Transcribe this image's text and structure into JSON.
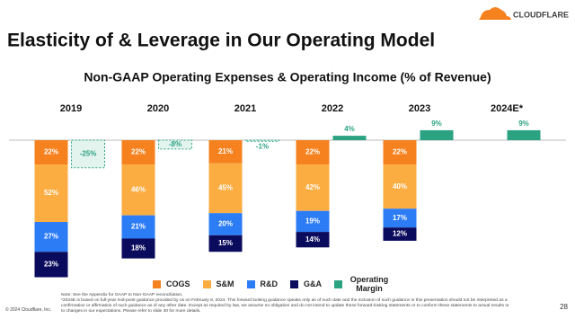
{
  "slide": {
    "title": "Elasticity of & Leverage in Our Operating Model",
    "logo": "CLOUDFLARE",
    "notes": [
      "Note: See the Appendix for GAAP to Non-GAAP reconciliation.",
      "*2024E is based on full-year mid-point guidance provided by us on February 8, 2024. This forward looking guidance speaks only as of such date and the inclusion of such guidance in this presentation should not be interpreted as a confirmation or affirmation of such guidance as of any other date. Except as required by law, we assume no obligation and do not intend to update these forward-looking statements or to conform these statements to actual results or to changes in our expectations. Please refer to slide 30 for more details."
    ],
    "copyright": "© 2024 Cloudflare, Inc.",
    "page_number": "28"
  },
  "chart_data": {
    "type": "bar",
    "stacked": true,
    "title": "Non-GAAP Operating Expenses & Operating Income (% of Revenue)",
    "categories": [
      "2019",
      "2020",
      "2021",
      "2022",
      "2023",
      "2024E*"
    ],
    "series": [
      {
        "name": "COGS",
        "color": "#f6821f",
        "values": [
          22,
          22,
          21,
          22,
          22,
          null
        ],
        "value_labels": [
          "22%",
          "22%",
          "21%",
          "22%",
          "22%",
          null
        ]
      },
      {
        "name": "S&M",
        "color": "#fbad41",
        "values": [
          52,
          46,
          45,
          42,
          40,
          null
        ],
        "value_labels": [
          "52%",
          "46%",
          "45%",
          "42%",
          "40%",
          null
        ]
      },
      {
        "name": "R&D",
        "color": "#2c7cf6",
        "values": [
          27,
          21,
          20,
          19,
          17,
          null
        ],
        "value_labels": [
          "27%",
          "21%",
          "20%",
          "19%",
          "17%",
          null
        ]
      },
      {
        "name": "G&A",
        "color": "#0b0b5e",
        "values": [
          23,
          18,
          15,
          14,
          12,
          null
        ],
        "value_labels": [
          "23%",
          "18%",
          "15%",
          "14%",
          "12%",
          null
        ]
      },
      {
        "name": "Operating Margin",
        "color": "#2ba383",
        "values": [
          -25,
          -8,
          -1,
          4,
          9,
          9
        ],
        "value_labels": [
          "-25%",
          "-8%",
          "-1%",
          "4%",
          "9%",
          "9%"
        ]
      }
    ]
  }
}
